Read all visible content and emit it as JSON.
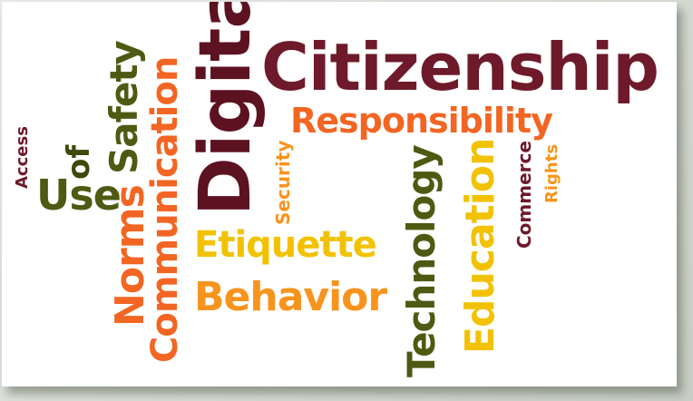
{
  "words": {
    "citizenship": "Citizenship",
    "responsibility": "Responsibility",
    "digital": "Digital",
    "communication": "Communication",
    "safety": "Safety",
    "of": "of",
    "use": "Use",
    "access": "Access",
    "norms": "Norms",
    "security": "Security",
    "etiquette": "Etiquette",
    "behavior": "Behavior",
    "technology": "Technology",
    "education": "Education",
    "commerce": "Commerce",
    "rights": "Rights"
  },
  "colors": {
    "maroon": "#6e1a2a",
    "dark_maroon": "#5c1220",
    "orange": "#f26522",
    "light_orange": "#f7941d",
    "yellow": "#f2c200",
    "olive": "#4e5a12",
    "dark_olive": "#3d4a0c"
  }
}
